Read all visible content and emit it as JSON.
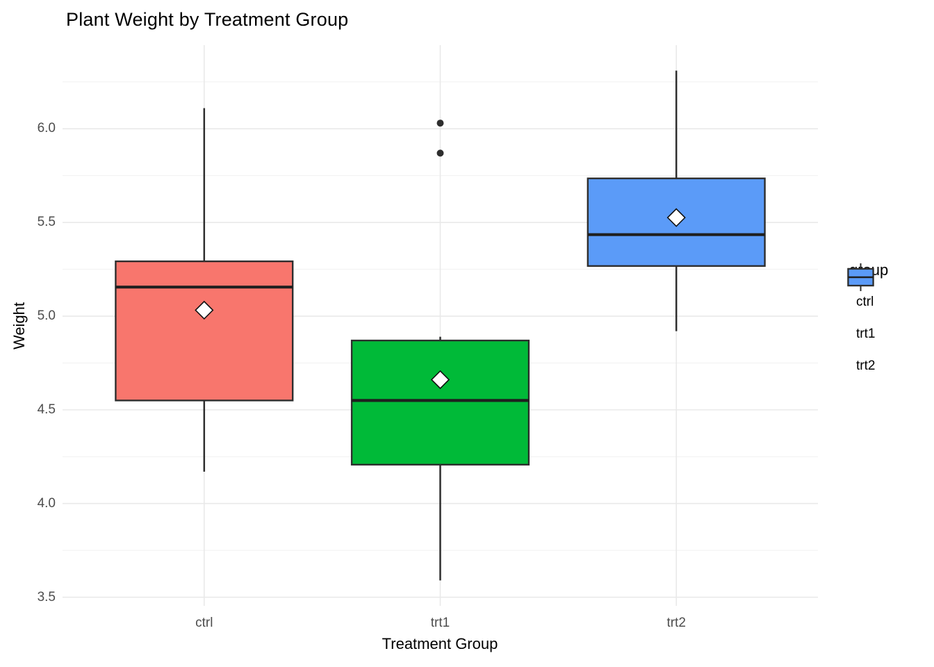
{
  "title": "Plant Weight by Treatment Group",
  "x_axis": {
    "label": "Treatment Group",
    "tick_labels": [
      "ctrl",
      "trt1",
      "trt2"
    ]
  },
  "y_axis": {
    "label": "Weight",
    "tick_labels": [
      "3.5",
      "4.0",
      "4.5",
      "5.0",
      "5.5",
      "6.0"
    ]
  },
  "legend": {
    "title": "group",
    "entries": [
      {
        "label": "ctrl",
        "color": "#F8766D"
      },
      {
        "label": "trt1",
        "color": "#00BA38"
      },
      {
        "label": "trt2",
        "color": "#5B9BF8"
      }
    ]
  },
  "colors": {
    "grid_major": "#E9E9E9",
    "grid_minor": "#F1F1F1",
    "box_border": "#2E2E2E",
    "median": "#1F1F1F",
    "whisker": "#2E2E2E",
    "outlier": "#2E2E2E",
    "mean_fill": "#FFFFFF",
    "mean_border": "#111111",
    "tick_label": "#4D4D4D"
  },
  "chart_data": {
    "type": "boxplot",
    "title": "Plant Weight by Treatment Group",
    "xlabel": "Treatment Group",
    "ylabel": "Weight",
    "categories": [
      "ctrl",
      "trt1",
      "trt2"
    ],
    "ylim": [
      3.454,
      6.446
    ],
    "y_ticks_major": [
      3.5,
      4.0,
      4.5,
      5.0,
      5.5,
      6.0
    ],
    "y_ticks_minor": [
      3.75,
      4.25,
      4.75,
      5.25,
      5.75,
      6.25
    ],
    "grid": true,
    "legend_title": "group",
    "legend_position": "right",
    "series": [
      {
        "name": "ctrl",
        "color": "#F8766D",
        "whisker_low": 4.17,
        "q1": 4.55,
        "median": 5.155,
        "q3": 5.2925,
        "whisker_high": 6.11,
        "mean": 5.032,
        "outliers": []
      },
      {
        "name": "trt1",
        "color": "#00BA38",
        "whisker_low": 3.59,
        "q1": 4.2075,
        "median": 4.55,
        "q3": 4.87,
        "whisker_high": 4.89,
        "mean": 4.661,
        "outliers": [
          5.87,
          6.03
        ]
      },
      {
        "name": "trt2",
        "color": "#5B9BF8",
        "whisker_low": 4.92,
        "q1": 5.2675,
        "median": 5.435,
        "q3": 5.735,
        "whisker_high": 6.31,
        "mean": 5.526,
        "outliers": []
      }
    ]
  }
}
